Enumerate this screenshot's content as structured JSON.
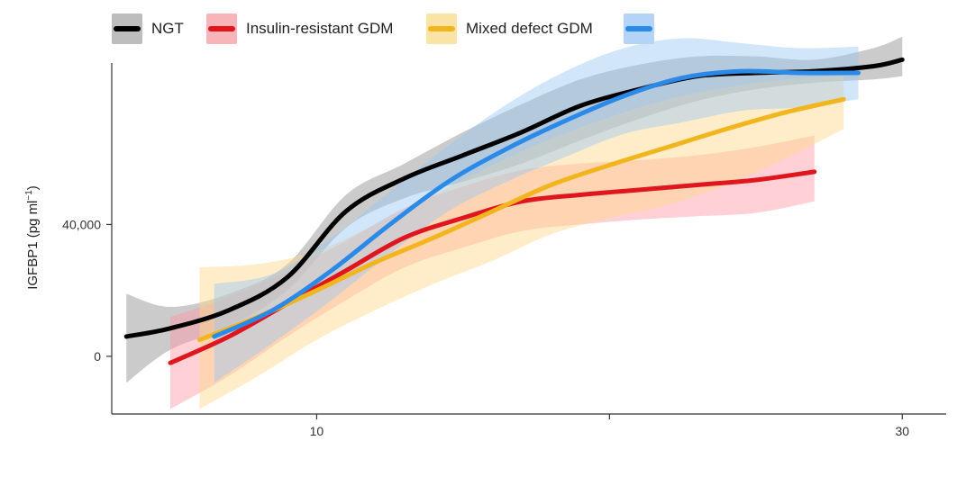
{
  "chart_data": {
    "type": "line",
    "title": "",
    "xlabel": "",
    "ylabel": "IGFBP1 (pg ml",
    "ylabel_sup": "−1",
    "ylabel_close": ")",
    "xlim": [
      3,
      31.5
    ],
    "ylim": [
      -17500,
      89000
    ],
    "x_ticks": [
      {
        "value": 10,
        "label": "10"
      },
      {
        "value": 20,
        "label": ""
      },
      {
        "value": 30,
        "label": "30"
      }
    ],
    "y_ticks": [
      {
        "value": 0,
        "label": "0"
      },
      {
        "value": 40000,
        "label": "40,000"
      }
    ],
    "grid": false,
    "legend_position": "top",
    "series": [
      {
        "name": "NGT",
        "line_color": "#000000",
        "band_color": "#8c8c8c",
        "band_opacity": 0.45,
        "swatch_bg": "#bdbdbd",
        "x": [
          3.5,
          5,
          7,
          9,
          11,
          13,
          15,
          17,
          19,
          21,
          23,
          25,
          27,
          29,
          30
        ],
        "y": [
          6000,
          8500,
          14000,
          24000,
          44000,
          54000,
          61000,
          68000,
          76000,
          81000,
          85000,
          86000,
          86500,
          88000,
          90000
        ],
        "lower": [
          -8000,
          2000,
          9000,
          20000,
          39000,
          48000,
          53000,
          58500,
          65500,
          72000,
          77500,
          81000,
          83000,
          84000,
          85000
        ],
        "upper": [
          19000,
          15000,
          19000,
          28000,
          49000,
          58500,
          68000,
          76500,
          84000,
          88500,
          91000,
          91000,
          90000,
          93500,
          97000
        ]
      },
      {
        "name": "Insulin-resistant GDM",
        "line_color": "#e0161e",
        "band_color": "#ff9aa3",
        "band_opacity": 0.45,
        "swatch_bg": "#f7b5b9",
        "x": [
          5,
          7,
          9,
          11,
          13,
          15,
          17,
          19,
          21,
          23,
          25,
          27
        ],
        "y": [
          -2000,
          6000,
          16000,
          26000,
          36000,
          42000,
          47000,
          49000,
          50500,
          52000,
          53500,
          56000
        ],
        "lower": [
          -16000,
          -6000,
          6000,
          17000,
          27000,
          33000,
          38000,
          40000,
          41500,
          42500,
          43500,
          47000
        ],
        "upper": [
          12000,
          18000,
          26000,
          35000,
          45000,
          51500,
          56500,
          58500,
          59500,
          61000,
          63500,
          67000
        ]
      },
      {
        "name": "Mixed defect GDM",
        "line_color": "#f2b51d",
        "band_color": "#ffd78a",
        "band_opacity": 0.45,
        "swatch_bg": "#fbe3a6",
        "x": [
          6,
          8,
          10,
          12,
          14,
          16,
          18,
          20,
          22,
          24,
          26,
          28
        ],
        "y": [
          5000,
          12000,
          20000,
          28500,
          36000,
          44000,
          52000,
          58000,
          63500,
          69000,
          74000,
          78000
        ],
        "lower": [
          -16000,
          -6000,
          5000,
          14000,
          22000,
          29000,
          37000,
          42000,
          46000,
          52000,
          60000,
          69000
        ],
        "upper": [
          27000,
          28000,
          32000,
          40000,
          49000,
          58000,
          66000,
          72500,
          78000,
          81500,
          84000,
          85000
        ]
      },
      {
        "name": "",
        "line_color": "#2b8ae8",
        "band_color": "#9cc8f5",
        "band_opacity": 0.45,
        "swatch_bg": "#b3d4f6",
        "x": [
          6.5,
          8.5,
          10.5,
          12.5,
          14.5,
          16.5,
          18.5,
          20.5,
          22.5,
          24.5,
          26.5,
          28.5
        ],
        "y": [
          6000,
          14000,
          26000,
          40000,
          53000,
          63000,
          71500,
          79000,
          84500,
          86500,
          86000,
          86000
        ],
        "lower": [
          -8000,
          4000,
          17000,
          31000,
          44000,
          53000,
          60500,
          67500,
          71000,
          74500,
          75500,
          78000
        ],
        "upper": [
          22000,
          25000,
          36000,
          50000,
          64000,
          76500,
          86500,
          93500,
          96500,
          95000,
          93500,
          94000
        ]
      }
    ]
  }
}
